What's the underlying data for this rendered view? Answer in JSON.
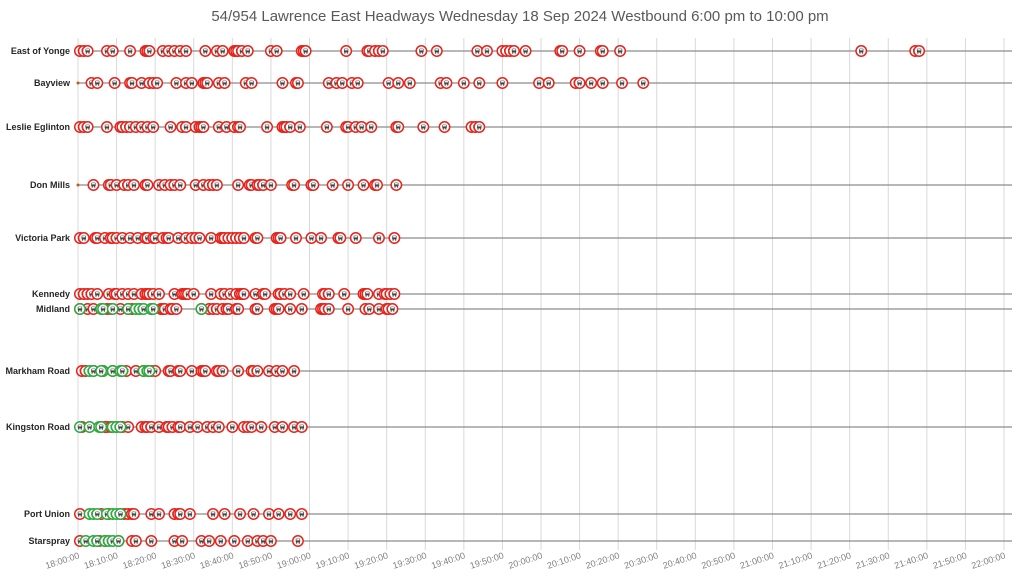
{
  "chart_data": {
    "type": "scatter",
    "title": "54/954 Lawrence East Headways Wednesday 18 Sep 2024 Westbound 6:00 pm to 10:00 pm",
    "xlabel": "",
    "ylabel": "",
    "x_range": [
      "18:00:00",
      "22:00:00"
    ],
    "x_ticks": [
      "18:00:00",
      "18:10:00",
      "18:20:00",
      "18:30:00",
      "18:40:00",
      "18:50:00",
      "19:00:00",
      "19:10:00",
      "19:20:00",
      "19:30:00",
      "19:40:00",
      "19:50:00",
      "20:00:00",
      "20:10:00",
      "20:20:00",
      "20:30:00",
      "20:40:00",
      "20:50:00",
      "21:00:00",
      "21:10:00",
      "21:20:00",
      "21:30:00",
      "21:40:00",
      "21:50:00",
      "22:00:00"
    ],
    "grid": true,
    "legend": "none",
    "colors": {
      "local_54": "#e8231b",
      "express_954": "#2eaa3f",
      "stop_line": "#8c8c8c",
      "grid": "#d9d9d9"
    },
    "stops": [
      {
        "name": "East of Yonge",
        "local": [
          "18:00:30",
          "18:01:30",
          "18:02:30",
          "18:07:30",
          "18:09:00",
          "18:13:30",
          "18:17:30",
          "18:18:00",
          "18:18:30",
          "18:22:00",
          "18:23:30",
          "18:25:00",
          "18:26:30",
          "18:28:00",
          "18:33:00",
          "18:36:00",
          "18:37:30",
          "18:40:30",
          "18:41:00",
          "18:41:30",
          "18:42:30",
          "18:44:00",
          "18:50:00",
          "18:51:30",
          "18:58:00",
          "18:58:30",
          "18:59:00",
          "19:09:30",
          "19:15:00",
          "19:15:30",
          "19:17:00",
          "19:18:00",
          "19:19:00",
          "19:29:00",
          "19:33:00",
          "19:43:30",
          "19:46:00",
          "19:50:00",
          "19:51:00",
          "19:52:00",
          "19:53:00",
          "19:56:00",
          "20:05:00",
          "20:05:30",
          "20:10:00",
          "20:15:30",
          "20:16:00",
          "20:20:30",
          "21:23:00",
          "21:37:00",
          "21:38:00"
        ]
      },
      {
        "name": "Bayview",
        "local": [
          "18:03:30",
          "18:05:00",
          "18:09:30",
          "18:13:30",
          "18:14:00",
          "18:16:30",
          "18:18:30",
          "18:19:30",
          "18:20:30",
          "18:25:30",
          "18:28:00",
          "18:29:30",
          "18:32:30",
          "18:33:00",
          "18:33:30",
          "18:36:30",
          "18:38:00",
          "18:43:30",
          "18:45:00",
          "18:53:00",
          "18:56:30",
          "18:57:00",
          "19:05:00",
          "19:07:00",
          "19:08:30",
          "19:11:00",
          "19:12:30",
          "19:20:30",
          "19:23:00",
          "19:26:00",
          "19:34:00",
          "19:35:30",
          "19:40:00",
          "19:44:00",
          "19:50:00",
          "19:59:30",
          "20:02:00",
          "20:09:00",
          "20:10:00",
          "20:13:00",
          "20:16:00",
          "20:21:00",
          "20:26:30"
        ]
      },
      {
        "name": "Leslie Eglinton",
        "local": [
          "18:00:30",
          "18:01:30",
          "18:02:30",
          "18:07:30",
          "18:11:00",
          "18:11:30",
          "18:12:30",
          "18:13:30",
          "18:15:00",
          "18:16:30",
          "18:18:00",
          "18:19:30",
          "18:24:00",
          "18:27:00",
          "18:28:00",
          "18:30:30",
          "18:31:30",
          "18:32:00",
          "18:32:30",
          "18:36:30",
          "18:38:30",
          "18:40:30",
          "18:41:30",
          "18:42:00",
          "18:49:00",
          "18:53:00",
          "18:53:30",
          "18:54:00",
          "18:55:00",
          "18:57:30",
          "19:04:30",
          "19:09:30",
          "19:10:00",
          "19:12:00",
          "19:13:30",
          "19:16:00",
          "19:22:30",
          "19:23:00",
          "19:29:30",
          "19:35:00",
          "19:42:00",
          "19:43:00",
          "19:44:00"
        ]
      },
      {
        "name": "Don Mills",
        "local": [
          "18:04:00",
          "18:08:00",
          "18:08:30",
          "18:10:00",
          "18:12:00",
          "18:13:00",
          "18:14:30",
          "18:17:30",
          "18:18:00",
          "18:21:00",
          "18:22:30",
          "18:24:00",
          "18:25:00",
          "18:26:30",
          "18:30:30",
          "18:32:30",
          "18:34:00",
          "18:35:00",
          "18:36:00",
          "18:41:30",
          "18:44:30",
          "18:45:00",
          "18:46:30",
          "18:47:00",
          "18:48:00",
          "18:50:00",
          "18:55:30",
          "18:56:00",
          "19:00:30",
          "19:01:00",
          "19:06:00",
          "19:10:00",
          "19:14:00",
          "19:17:00",
          "19:17:30",
          "19:22:30"
        ]
      },
      {
        "name": "Victoria Park",
        "local": [
          "18:00:30",
          "18:01:30",
          "18:04:30",
          "18:05:00",
          "18:07:00",
          "18:08:30",
          "18:09:00",
          "18:10:00",
          "18:11:30",
          "18:13:30",
          "18:15:30",
          "18:17:30",
          "18:18:00",
          "18:19:30",
          "18:20:00",
          "18:22:00",
          "18:23:00",
          "18:23:30",
          "18:26:00",
          "18:28:00",
          "18:29:30",
          "18:30:30",
          "18:31:30",
          "18:34:30",
          "18:37:00",
          "18:37:30",
          "18:38:00",
          "18:39:00",
          "18:40:00",
          "18:41:00",
          "18:42:00",
          "18:43:00",
          "18:46:00",
          "18:46:30",
          "18:51:30",
          "18:52:00",
          "18:52:30",
          "18:56:30",
          "19:00:30",
          "19:03:00",
          "19:07:30",
          "19:08:00",
          "19:12:00",
          "19:18:00",
          "19:22:00"
        ]
      },
      {
        "name": "Kennedy",
        "local": [
          "18:00:30",
          "18:01:30",
          "18:02:30",
          "18:03:30",
          "18:05:00",
          "18:08:00",
          "18:09:30",
          "18:10:00",
          "18:11:30",
          "18:13:00",
          "18:14:30",
          "18:16:30",
          "18:17:30",
          "18:18:00",
          "18:18:30",
          "18:19:30",
          "18:21:00",
          "18:25:00",
          "18:27:00",
          "18:27:30",
          "18:28:00",
          "18:28:30",
          "18:30:00",
          "18:34:30",
          "18:37:00",
          "18:38:00",
          "18:39:30",
          "18:41:00",
          "18:42:00",
          "18:42:30",
          "18:43:00",
          "18:46:00",
          "18:48:00",
          "18:48:30",
          "18:52:00",
          "18:52:30",
          "18:53:30",
          "18:55:00",
          "18:58:30",
          "19:03:30",
          "19:04:00",
          "19:05:00",
          "19:09:00",
          "19:14:00",
          "19:14:30",
          "19:15:00",
          "19:18:00",
          "19:19:30",
          "19:20:00",
          "19:21:00",
          "19:22:00"
        ]
      },
      {
        "name": "Midland",
        "local": [
          "18:00:30",
          "18:02:30",
          "18:04:00",
          "18:07:30",
          "18:08:30",
          "18:11:00",
          "18:13:00",
          "18:14:00",
          "18:16:00",
          "18:19:00",
          "18:21:30",
          "18:22:00",
          "18:22:30",
          "18:24:00",
          "18:24:30",
          "18:25:30",
          "18:32:00",
          "18:34:00",
          "18:35:00",
          "18:36:00",
          "18:37:30",
          "18:38:30",
          "18:39:00",
          "18:41:00",
          "18:41:30",
          "18:46:00",
          "18:46:30",
          "18:51:00",
          "18:51:30",
          "18:52:00",
          "18:55:00",
          "18:58:00",
          "19:03:00",
          "19:03:30",
          "19:04:00",
          "19:05:00",
          "19:10:00",
          "19:14:30",
          "19:15:30",
          "19:18:00",
          "19:20:00",
          "19:20:30",
          "19:21:30"
        ],
        "express": [
          "18:00:30",
          "18:06:00",
          "18:06:30",
          "18:09:00",
          "18:13:00",
          "18:15:00",
          "18:16:00",
          "18:17:00",
          "18:19:00",
          "18:19:30",
          "18:32:00"
        ]
      },
      {
        "name": "Markham Road",
        "local": [
          "18:01:00",
          "18:02:00",
          "18:04:00",
          "18:06:30",
          "18:09:00",
          "18:12:30",
          "18:15:00",
          "18:17:00",
          "18:19:00",
          "18:20:00",
          "18:23:30",
          "18:24:00",
          "18:26:00",
          "18:26:30",
          "18:29:30",
          "18:32:00",
          "18:32:30",
          "18:33:00",
          "18:36:00",
          "18:36:30",
          "18:37:30",
          "18:41:30",
          "18:45:00",
          "18:45:30",
          "18:46:30",
          "18:49:30",
          "18:51:30",
          "18:53:00",
          "18:56:00"
        ],
        "express": [
          "18:03:00",
          "18:04:00",
          "18:06:30",
          "18:06:00",
          "18:09:00",
          "18:11:00",
          "18:11:30",
          "18:17:00",
          "18:18:00",
          "18:18:30"
        ]
      },
      {
        "name": "Kingston Road",
        "local": [
          "18:01:00",
          "18:06:00",
          "18:07:00",
          "18:07:30",
          "18:08:30",
          "18:10:00",
          "18:11:30",
          "18:13:00",
          "18:16:30",
          "18:17:30",
          "18:18:00",
          "18:19:00",
          "18:21:00",
          "18:23:00",
          "18:23:30",
          "18:24:30",
          "18:26:00",
          "18:26:30",
          "18:29:00",
          "18:31:00",
          "18:33:30",
          "18:35:00",
          "18:36:30",
          "18:40:00",
          "18:43:00",
          "18:44:00",
          "18:45:00",
          "18:47:30",
          "18:51:00",
          "18:53:00",
          "18:56:00",
          "18:58:00"
        ],
        "express": [
          "18:00:30",
          "18:03:00",
          "18:05:30",
          "18:06:00",
          "18:09:00",
          "18:10:00",
          "18:11:00"
        ]
      },
      {
        "name": "Port Union",
        "local": [
          "18:00:30",
          "18:06:00",
          "18:08:00",
          "18:11:00",
          "18:12:00",
          "18:13:00",
          "18:14:00",
          "18:14:30",
          "18:19:00",
          "18:21:00",
          "18:25:00",
          "18:26:00",
          "18:26:30",
          "18:29:00",
          "18:35:00",
          "18:38:00",
          "18:42:00",
          "18:45:30",
          "18:49:30",
          "18:52:00",
          "18:55:00",
          "18:58:00"
        ],
        "express": [
          "18:03:00",
          "18:04:00",
          "18:05:00",
          "18:07:30",
          "18:09:00",
          "18:10:00",
          "18:11:00"
        ]
      },
      {
        "name": "Starspray",
        "local": [
          "18:00:30",
          "18:05:30",
          "18:07:00",
          "18:10:30",
          "18:14:00",
          "18:15:00",
          "18:19:00",
          "18:25:00",
          "18:27:00",
          "18:32:00",
          "18:34:00",
          "18:37:00",
          "18:40:30",
          "18:44:00",
          "18:46:30",
          "18:48:00",
          "18:50:00",
          "18:57:00"
        ],
        "express": [
          "18:02:00",
          "18:04:00",
          "18:05:00",
          "18:07:00",
          "18:08:00",
          "18:09:00",
          "18:10:30"
        ]
      }
    ]
  }
}
